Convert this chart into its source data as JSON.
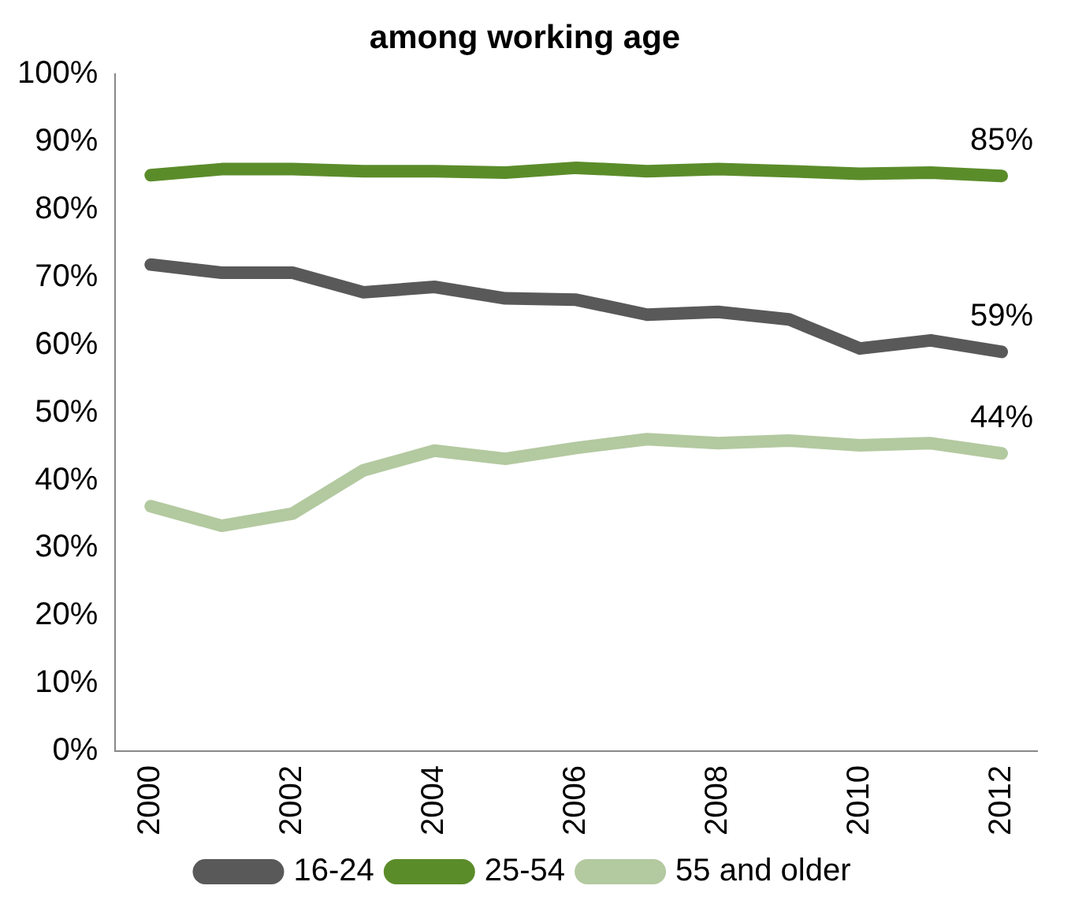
{
  "chart_data": {
    "type": "line",
    "title": "among working age",
    "categories": [
      "2000",
      null,
      "2002",
      null,
      "2004",
      null,
      "2006",
      null,
      "2008",
      null,
      "2010",
      null,
      "2012"
    ],
    "series": [
      {
        "name": "16-24",
        "color": "#595959",
        "values": [
          71.9,
          70.7,
          70.7,
          67.8,
          68.6,
          66.9,
          66.7,
          64.5,
          64.9,
          63.8,
          59.5,
          60.7,
          59
        ]
      },
      {
        "name": "25-54",
        "color": "#5b8c2a",
        "values": [
          85.1,
          86,
          86,
          85.7,
          85.7,
          85.5,
          86.2,
          85.7,
          86,
          85.7,
          85.3,
          85.5,
          85
        ]
      },
      {
        "name": "55 and older",
        "color": "#b3c9a0",
        "values": [
          36.2,
          33.3,
          35.1,
          41.5,
          44.4,
          43.2,
          44.8,
          46.1,
          45.5,
          45.9,
          45.2,
          45.5,
          44
        ]
      }
    ],
    "ylim": [
      0,
      100
    ],
    "yticks": [
      {
        "value": 0,
        "label": "0%"
      },
      {
        "value": 10,
        "label": "10%"
      },
      {
        "value": 20,
        "label": "20%"
      },
      {
        "value": 30,
        "label": "30%"
      },
      {
        "value": 40,
        "label": "40%"
      },
      {
        "value": 50,
        "label": "50%"
      },
      {
        "value": 60,
        "label": "60%"
      },
      {
        "value": 70,
        "label": "70%"
      },
      {
        "value": 80,
        "label": "80%"
      },
      {
        "value": 90,
        "label": "90%"
      },
      {
        "value": 100,
        "label": "100%"
      }
    ],
    "annotations": [
      {
        "text": "85%",
        "x": "2012",
        "y": 85
      },
      {
        "text": "59%",
        "x": "2012",
        "y": 59
      },
      {
        "text": "44%",
        "x": "2012",
        "y": 44
      }
    ],
    "grid": false,
    "legend": "bottom",
    "marker": "none",
    "line_style": "solid"
  }
}
